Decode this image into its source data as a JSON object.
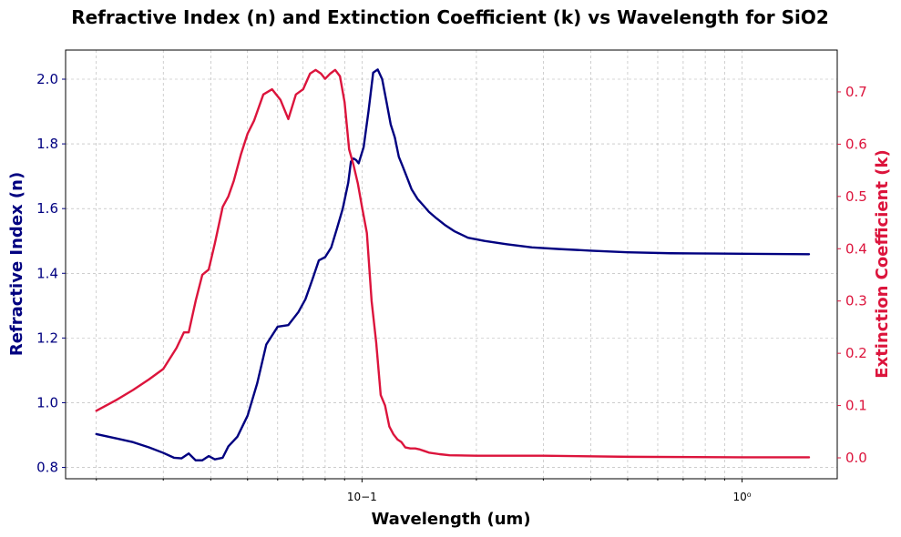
{
  "chart_data": {
    "type": "line",
    "title": "Refractive Index (n) and Extinction Coefficient (k) vs Wavelength for SiO2",
    "xlabel": "Wavelength (um)",
    "ylabel_left": "Refractive Index (n)",
    "ylabel_right": "Extinction Coefficient (k)",
    "x_scale": "log",
    "xlim": [
      0.0166,
      1.78
    ],
    "ylim_left": [
      0.765,
      2.09
    ],
    "ylim_right": [
      -0.04,
      0.78
    ],
    "x_ticks": [
      {
        "value": 0.1,
        "label": "10−1"
      },
      {
        "value": 1,
        "label": "10⁰"
      }
    ],
    "y_ticks_left": [
      "0.8",
      "1.0",
      "1.2",
      "1.4",
      "1.6",
      "1.8",
      "2.0"
    ],
    "y_ticks_right": [
      "0.0",
      "0.1",
      "0.2",
      "0.3",
      "0.4",
      "0.5",
      "0.6",
      "0.7"
    ],
    "grid": true,
    "colors": {
      "n": "#000080",
      "k": "#dc143c"
    },
    "series": [
      {
        "axis": "left",
        "x": [
          0.02,
          0.0225,
          0.025,
          0.0275,
          0.03,
          0.032,
          0.0335,
          0.035,
          0.0365,
          0.038,
          0.0395,
          0.041,
          0.043,
          0.0445,
          0.047,
          0.05,
          0.053,
          0.056,
          0.06,
          0.064,
          0.068,
          0.071,
          0.074,
          0.077,
          0.08,
          0.083,
          0.086,
          0.089,
          0.092,
          0.0935,
          0.095,
          0.0965,
          0.098,
          0.101,
          0.104,
          0.107,
          0.11,
          0.113,
          0.116,
          0.119,
          0.122,
          0.125,
          0.128,
          0.131,
          0.135,
          0.14,
          0.145,
          0.15,
          0.157,
          0.165,
          0.175,
          0.19,
          0.21,
          0.24,
          0.28,
          0.33,
          0.4,
          0.5,
          0.65,
          0.85,
          1.1,
          1.5
        ],
        "y": [
          0.903,
          0.89,
          0.878,
          0.862,
          0.845,
          0.83,
          0.828,
          0.843,
          0.822,
          0.822,
          0.835,
          0.825,
          0.83,
          0.865,
          0.895,
          0.96,
          1.06,
          1.18,
          1.235,
          1.24,
          1.28,
          1.32,
          1.38,
          1.44,
          1.45,
          1.48,
          1.54,
          1.6,
          1.68,
          1.745,
          1.755,
          1.75,
          1.74,
          1.79,
          1.9,
          2.02,
          2.03,
          2.0,
          1.93,
          1.86,
          1.82,
          1.76,
          1.73,
          1.7,
          1.66,
          1.63,
          1.61,
          1.59,
          1.57,
          1.55,
          1.53,
          1.51,
          1.5,
          1.49,
          1.48,
          1.475,
          1.47,
          1.465,
          1.462,
          1.461,
          1.46,
          1.459
        ]
      },
      {
        "axis": "right",
        "x": [
          0.02,
          0.0225,
          0.025,
          0.0275,
          0.03,
          0.0325,
          0.034,
          0.035,
          0.0365,
          0.038,
          0.0395,
          0.041,
          0.043,
          0.0445,
          0.046,
          0.048,
          0.05,
          0.052,
          0.055,
          0.058,
          0.061,
          0.064,
          0.067,
          0.07,
          0.073,
          0.0755,
          0.078,
          0.08,
          0.0825,
          0.085,
          0.0875,
          0.09,
          0.0925,
          0.095,
          0.0975,
          0.1,
          0.103,
          0.106,
          0.109,
          0.112,
          0.115,
          0.118,
          0.121,
          0.124,
          0.127,
          0.13,
          0.134,
          0.138,
          0.142,
          0.146,
          0.15,
          0.16,
          0.17,
          0.2,
          0.3,
          0.5,
          1.0,
          1.5
        ],
        "y": [
          0.09,
          0.11,
          0.13,
          0.15,
          0.17,
          0.21,
          0.24,
          0.24,
          0.3,
          0.35,
          0.36,
          0.41,
          0.48,
          0.5,
          0.53,
          0.58,
          0.62,
          0.645,
          0.695,
          0.705,
          0.685,
          0.648,
          0.695,
          0.705,
          0.735,
          0.742,
          0.735,
          0.725,
          0.735,
          0.742,
          0.73,
          0.68,
          0.59,
          0.56,
          0.525,
          0.48,
          0.43,
          0.3,
          0.22,
          0.12,
          0.1,
          0.06,
          0.045,
          0.035,
          0.03,
          0.02,
          0.018,
          0.018,
          0.016,
          0.013,
          0.01,
          0.007,
          0.005,
          0.004,
          0.004,
          0.002,
          0.001,
          0.001
        ]
      }
    ]
  }
}
